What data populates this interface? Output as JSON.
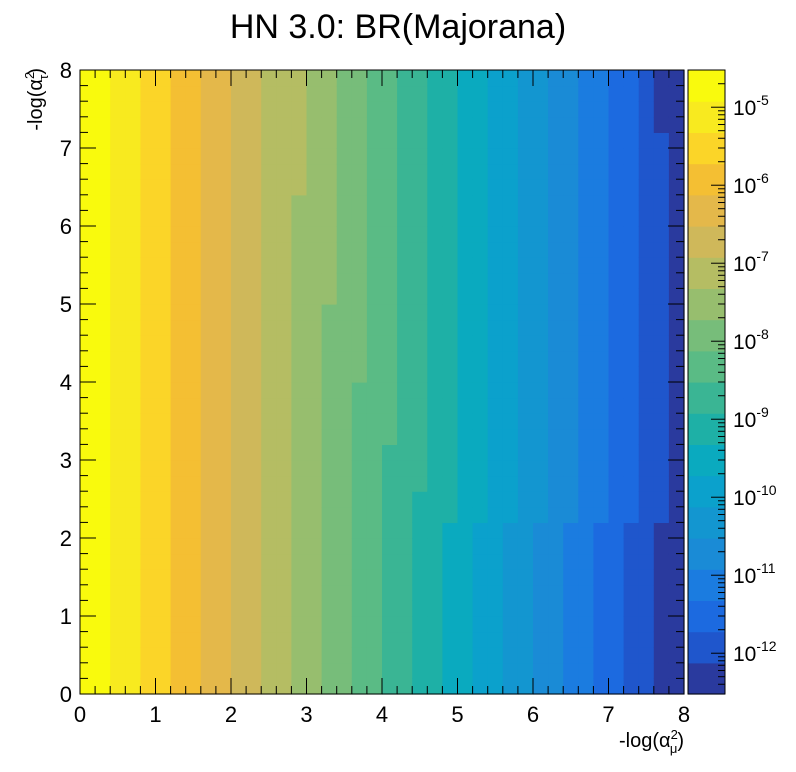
{
  "chart_data": {
    "type": "heatmap",
    "title": "HN 3.0: BR(Majorana)",
    "xlabel": "-log(α_μ^2)",
    "ylabel": "-log(α_τ^2)",
    "x_label_base": "-log(α",
    "x_label_sup": "2",
    "x_label_sub": "μ",
    "y_label_base": "-log(α",
    "y_label_sup": "2",
    "y_label_sub": "τ",
    "close_paren": ")",
    "xlim": [
      0,
      8
    ],
    "ylim": [
      0,
      8
    ],
    "x_ticks": [
      "0",
      "1",
      "2",
      "3",
      "4",
      "5",
      "6",
      "7",
      "8"
    ],
    "y_ticks": [
      "0",
      "1",
      "2",
      "3",
      "4",
      "5",
      "6",
      "7",
      "8"
    ],
    "grid": false,
    "bins": [
      40,
      40
    ],
    "z_scale": "log",
    "zlim": [
      3e-13,
      3e-05
    ],
    "colorbar_ticks": [
      {
        "base": "10",
        "exp": "-5",
        "value": 1e-05
      },
      {
        "base": "10",
        "exp": "-6",
        "value": 1e-06
      },
      {
        "base": "10",
        "exp": "-7",
        "value": 1e-07
      },
      {
        "base": "10",
        "exp": "-8",
        "value": 1e-08
      },
      {
        "base": "10",
        "exp": "-9",
        "value": 1e-09
      },
      {
        "base": "10",
        "exp": "-10",
        "value": 1e-10
      },
      {
        "base": "10",
        "exp": "-11",
        "value": 1e-11
      },
      {
        "base": "10",
        "exp": "-12",
        "value": 1e-12
      }
    ],
    "palette": [
      "#2a3a9e",
      "#1f56cc",
      "#1c6ae0",
      "#1b7ce0",
      "#1a8bd6",
      "#1396d0",
      "#0ba1cc",
      "#0aaabf",
      "#1eb0a6",
      "#3ab594",
      "#5abb85",
      "#77bd7a",
      "#97be6e",
      "#b5bd63",
      "#cfb85a",
      "#e4b84a",
      "#f4bf33",
      "#fbd528",
      "#f8ea1f",
      "#f9fa0d"
    ],
    "model": {
      "description_of_values": "BR decreases ~1 decade per unit of -log(alpha_mu^2); contours bend toward higher x as -log(alpha_tau^2) increases",
      "log10_br_at_origin": -4.6,
      "slope_per_unit_x": -1.0,
      "tau_correction_coeff": 0.12,
      "corner_log10_br_at_8_8": -12.6
    }
  }
}
